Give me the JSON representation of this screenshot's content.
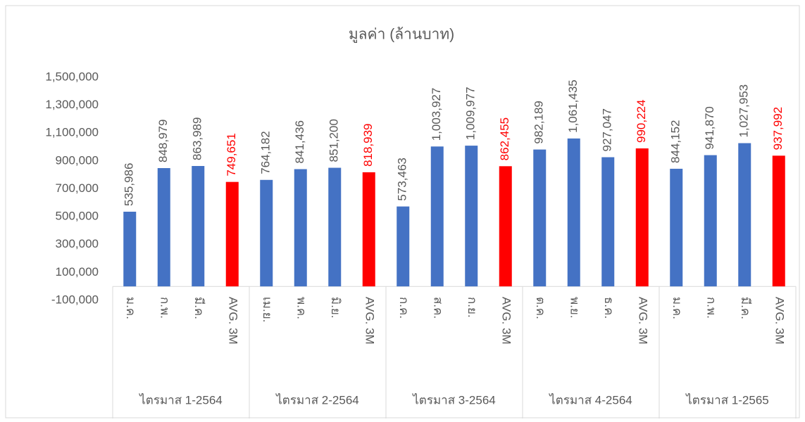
{
  "chart_data": {
    "type": "bar",
    "title": "มูลค่า (ล้านบาท)",
    "categories": [
      "ม.ค.",
      "ก.พ.",
      "มี.ค.",
      "AVG. 3M",
      "เม.ย.",
      "พ.ค.",
      "มิ.ย.",
      "AVG. 3M",
      "ก.ค.",
      "ส.ค.",
      "ก.ย.",
      "AVG. 3M",
      "ต.ค.",
      "พ.ย.",
      "ธ.ค.",
      "AVG. 3M",
      "ม.ค.",
      "ก.พ.",
      "มี.ค.",
      "AVG. 3M"
    ],
    "groups": [
      "ไตรมาส 1-2564",
      "ไตรมาส 2-2564",
      "ไตรมาส 3-2564",
      "ไตรมาส 4-2564",
      "ไตรมาส 1-2565"
    ],
    "values": [
      535986,
      848979,
      863989,
      749651,
      764182,
      841436,
      851200,
      818939,
      573463,
      1003927,
      1009977,
      862455,
      982189,
      1061435,
      927047,
      990224,
      844152,
      941870,
      1027953,
      937992
    ],
    "value_labels": [
      "535,986",
      "848,979",
      "863,989",
      "749,651",
      "764,182",
      "841,436",
      "851,200",
      "818,939",
      "573,463",
      "1,003,927",
      "1,009,977",
      "862,455",
      "982,189",
      "1,061,435",
      "927,047",
      "990,224",
      "844,152",
      "941,870",
      "1,027,953",
      "937,992"
    ],
    "colors": [
      "#4472c4",
      "#4472c4",
      "#4472c4",
      "#ff0000",
      "#4472c4",
      "#4472c4",
      "#4472c4",
      "#ff0000",
      "#4472c4",
      "#4472c4",
      "#4472c4",
      "#ff0000",
      "#4472c4",
      "#4472c4",
      "#4472c4",
      "#ff0000",
      "#4472c4",
      "#4472c4",
      "#4472c4",
      "#ff0000"
    ],
    "label_colors": [
      "#595959",
      "#595959",
      "#595959",
      "#ff0000",
      "#595959",
      "#595959",
      "#595959",
      "#ff0000",
      "#595959",
      "#595959",
      "#595959",
      "#ff0000",
      "#595959",
      "#595959",
      "#595959",
      "#ff0000",
      "#595959",
      "#595959",
      "#595959",
      "#ff0000"
    ],
    "ylim": [
      -100000,
      1500000
    ],
    "yticks": [
      {
        "value": -100000,
        "label": "-100,000"
      },
      {
        "value": 100000,
        "label": "100,000"
      },
      {
        "value": 300000,
        "label": "300,000"
      },
      {
        "value": 500000,
        "label": "500,000"
      },
      {
        "value": 700000,
        "label": "700,000"
      },
      {
        "value": 900000,
        "label": "900,000"
      },
      {
        "value": 1100000,
        "label": "1,100,000"
      },
      {
        "value": 1300000,
        "label": "1,300,000"
      },
      {
        "value": 1500000,
        "label": "1,500,000"
      }
    ],
    "grid": false
  }
}
